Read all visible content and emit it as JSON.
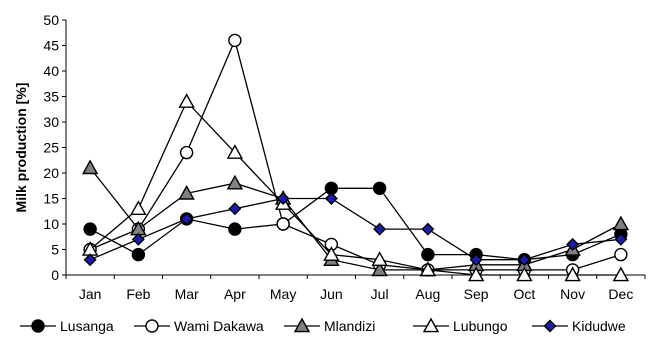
{
  "chart_data": {
    "type": "line",
    "title": "",
    "xlabel": "",
    "ylabel": "Milk production [%]",
    "ylim": [
      0,
      50
    ],
    "yticks": [
      0,
      5,
      10,
      15,
      20,
      25,
      30,
      35,
      40,
      45,
      50
    ],
    "categories": [
      "Jan",
      "Feb",
      "Mar",
      "Apr",
      "May",
      "Jun",
      "Jul",
      "Aug",
      "Sep",
      "Oct",
      "Nov",
      "Dec"
    ],
    "grid": false,
    "legend_position": "bottom",
    "series": [
      {
        "name": "Lusanga",
        "marker": "circle-filled",
        "color": "#000000",
        "values": [
          9,
          4,
          11,
          9,
          10,
          17,
          17,
          4,
          4,
          3,
          4,
          8
        ]
      },
      {
        "name": "Wami Dakawa",
        "marker": "circle-open",
        "color": "#000000",
        "values": [
          5,
          9,
          24,
          46,
          10,
          6,
          2,
          1,
          1,
          1,
          1,
          4
        ]
      },
      {
        "name": "Mlandizi",
        "marker": "triangle-gray",
        "color": "#808080",
        "values": [
          21,
          9,
          16,
          18,
          15,
          3,
          1,
          1,
          2,
          2,
          5,
          10
        ]
      },
      {
        "name": "Lubungo",
        "marker": "triangle-open",
        "color": "#ffffff",
        "values": [
          5,
          13,
          34,
          24,
          14,
          4,
          3,
          1,
          0,
          0,
          0,
          0
        ]
      },
      {
        "name": "Kidudwe",
        "marker": "diamond-blue",
        "color": "#1c1ca8",
        "values": [
          3,
          7,
          11,
          13,
          15,
          15,
          9,
          9,
          3,
          3,
          6,
          7
        ]
      }
    ]
  }
}
